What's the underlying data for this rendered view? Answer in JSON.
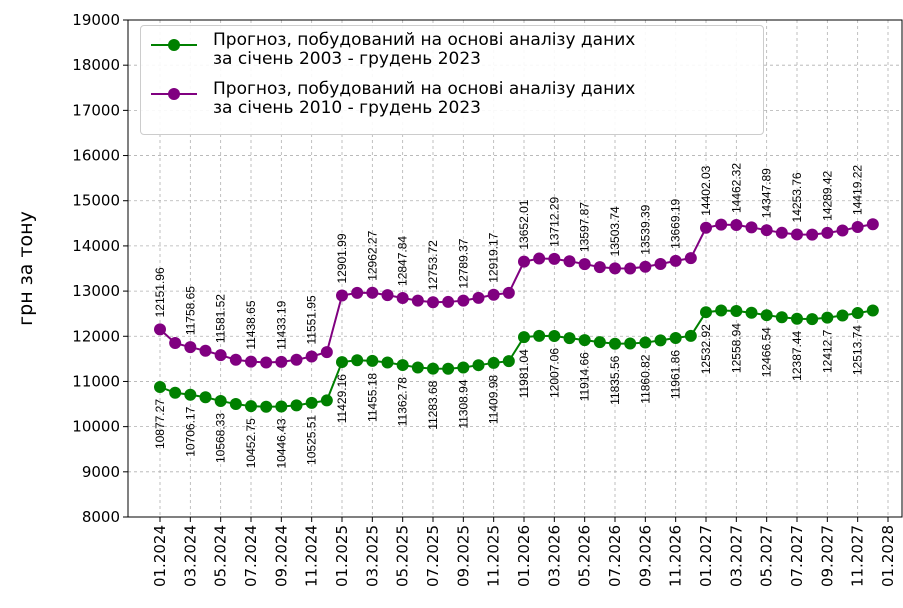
{
  "chart_data": {
    "type": "line",
    "y_label": "грн за тону",
    "categories": [
      "01.2024",
      null,
      "03.2024",
      null,
      "05.2024",
      null,
      "07.2024",
      null,
      "09.2024",
      null,
      "11.2024",
      null,
      "01.2025",
      null,
      "03.2025",
      null,
      "05.2025",
      null,
      "07.2025",
      null,
      "09.2025",
      null,
      "11.2025",
      null,
      "01.2026",
      null,
      "03.2026",
      null,
      "05.2026",
      null,
      "07.2026",
      null,
      "09.2026",
      null,
      "11.2026",
      null,
      "01.2027",
      null,
      "03.2027",
      null,
      "05.2027",
      null,
      "07.2027",
      null,
      "09.2027",
      null,
      "11.2027",
      null,
      "01.2028"
    ],
    "series": [
      {
        "name": "Прогноз, побудований на основі аналізу даних\nза січень 2003 - грудень 2023",
        "color": "#008000",
        "label_side": "below",
        "values": [
          10877.27,
          10750,
          10706.17,
          10650,
          10568.33,
          10500,
          10452.75,
          10440,
          10446.43,
          10470,
          10525.51,
          10580,
          11429.16,
          11470,
          11455.18,
          11420,
          11362.78,
          11310,
          11283.68,
          11280,
          11308.94,
          11360,
          11409.98,
          11450,
          11981.04,
          12010,
          12007.06,
          11960,
          11914.66,
          11870,
          11835.56,
          11840,
          11860.82,
          11910,
          11961.86,
          12010,
          12532.92,
          12570,
          12558.94,
          12520,
          12466.54,
          12420,
          12387.44,
          12380,
          12412.7,
          12460,
          12513.74,
          12570,
          null
        ],
        "value_labels": [
          "10877.27",
          null,
          "10706.17",
          null,
          "10568.33",
          null,
          "10452.75",
          null,
          "10446.43",
          null,
          "10525.51",
          null,
          "11429.16",
          null,
          "11455.18",
          null,
          "11362.78",
          null,
          "11283.68",
          null,
          "11308.94",
          null,
          "11409.98",
          null,
          "11981.04",
          null,
          "12007.06",
          null,
          "11914.66",
          null,
          "11835.56",
          null,
          "11860.82",
          null,
          "11961.86",
          null,
          "12532.92",
          null,
          "12558.94",
          null,
          "12466.54",
          null,
          "12387.44",
          null,
          "12412.7",
          null,
          "12513.74",
          null,
          null
        ]
      },
      {
        "name": "Прогноз, побудований на основі аналізу даних\nза січень 2010 - грудень 2023",
        "color": "#800080",
        "label_side": "above",
        "values": [
          12151.96,
          11850,
          11758.65,
          11680,
          11581.52,
          11480,
          11438.65,
          11420,
          11433.19,
          11480,
          11551.95,
          11650,
          12901.99,
          12960,
          12962.27,
          12910,
          12847.84,
          12790,
          12753.72,
          12760,
          12789.37,
          12850,
          12919.17,
          12960,
          13652.01,
          13720,
          13712.29,
          13660,
          13597.87,
          13530,
          13503.74,
          13500,
          13539.39,
          13600,
          13669.19,
          13730,
          14402.03,
          14470,
          14462.32,
          14410,
          14347.89,
          14290,
          14253.76,
          14250,
          14289.42,
          14340,
          14419.22,
          14480,
          null
        ],
        "value_labels": [
          "12151.96",
          null,
          "11758.65",
          null,
          "11581.52",
          null,
          "11438.65",
          null,
          "11433.19",
          null,
          "11551.95",
          null,
          "12901.99",
          null,
          "12962.27",
          null,
          "12847.84",
          null,
          "12753.72",
          null,
          "12789.37",
          null,
          "12919.17",
          null,
          "13652.01",
          null,
          "13712.29",
          null,
          "13597.87",
          null,
          "13503.74",
          null,
          "13539.39",
          null,
          "13669.19",
          null,
          "14402.03",
          null,
          "14462.32",
          null,
          "14347.89",
          null,
          "14253.76",
          null,
          "14289.42",
          null,
          "14419.22",
          null,
          null
        ]
      }
    ],
    "ylim": [
      8000,
      19000
    ],
    "yticks": [
      8000,
      9000,
      10000,
      11000,
      12000,
      13000,
      14000,
      15000,
      16000,
      17000,
      18000,
      19000
    ],
    "grid": true,
    "legend": "upper left"
  }
}
